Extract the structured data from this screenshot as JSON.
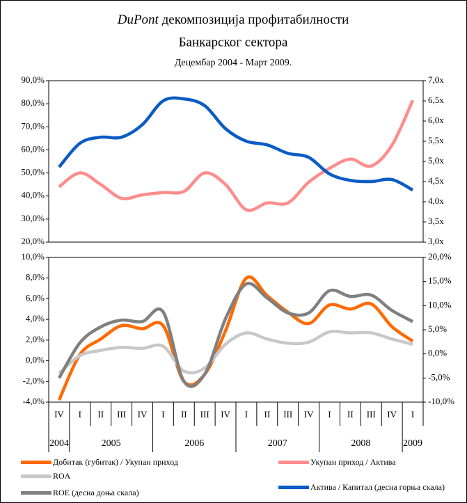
{
  "chart_data": [
    {
      "type": "line",
      "title_lead": "DuPont",
      "title": "декомпозиција профитабилности",
      "title2": "Банкарског сектора",
      "subtitle": "Децембар 2004 - Март 2009.",
      "ylim": [
        20,
        90
      ],
      "yticks": [
        {
          "value": 20,
          "label": "20,0%"
        },
        {
          "value": 30,
          "label": "30,0%"
        },
        {
          "value": 40,
          "label": "40,0%"
        },
        {
          "value": 50,
          "label": "50,0%"
        },
        {
          "value": 60,
          "label": "60,0%"
        },
        {
          "value": 70,
          "label": "70,0%"
        },
        {
          "value": 80,
          "label": "80,0%"
        },
        {
          "value": 90,
          "label": "90,0%"
        }
      ],
      "y2lim": [
        3,
        7
      ],
      "y2ticks": [
        {
          "value": 3,
          "label": "3,0x"
        },
        {
          "value": 3.5,
          "label": "3,5x"
        },
        {
          "value": 4,
          "label": "4,0x"
        },
        {
          "value": 4.5,
          "label": "4,5x"
        },
        {
          "value": 5,
          "label": "5,0x"
        },
        {
          "value": 5.5,
          "label": "5,5x"
        },
        {
          "value": 6,
          "label": "6,0x"
        },
        {
          "value": 6.5,
          "label": "6,5x"
        },
        {
          "value": 7,
          "label": "7,0x"
        }
      ],
      "series": [
        {
          "name": "Укупан приход / Актива",
          "color": "#ff8c8c",
          "values": [
            44,
            50,
            45,
            39,
            40.5,
            41.5,
            42,
            50,
            45,
            34,
            37,
            37,
            46,
            52,
            56,
            53,
            62,
            81.5
          ]
        },
        {
          "name": "Актива / Капитал (десна горња скала)",
          "color": "#0a5cc4",
          "axis": "y2",
          "values": [
            4.86,
            5.45,
            5.6,
            5.6,
            5.91,
            6.5,
            6.55,
            6.38,
            5.81,
            5.5,
            5.41,
            5.2,
            5.1,
            4.69,
            4.53,
            4.5,
            4.55,
            4.29
          ]
        }
      ]
    },
    {
      "type": "line",
      "categories": [
        "IV",
        "I",
        "II",
        "III",
        "IV",
        "I",
        "II",
        "III",
        "IV",
        "I",
        "II",
        "III",
        "IV",
        "I",
        "II",
        "III",
        "IV",
        "I"
      ],
      "years": [
        "2004",
        "2005",
        "2006",
        "2007",
        "2008",
        "2009"
      ],
      "ylim": [
        -4,
        10
      ],
      "yticks": [
        {
          "value": -4,
          "label": "-4,0%"
        },
        {
          "value": -2,
          "label": "-2,0%"
        },
        {
          "value": 0,
          "label": "0,0%"
        },
        {
          "value": 2,
          "label": "2,0%"
        },
        {
          "value": 4,
          "label": "4,0%"
        },
        {
          "value": 6,
          "label": "6,0%"
        },
        {
          "value": 8,
          "label": "8,0%"
        },
        {
          "value": 10,
          "label": "10,0%"
        }
      ],
      "y2lim": [
        -10,
        20
      ],
      "y2ticks": [
        {
          "value": -10,
          "label": "-10,0%"
        },
        {
          "value": -5,
          "label": "-5,0%"
        },
        {
          "value": 0,
          "label": "0,0%"
        },
        {
          "value": 5,
          "label": "5,0%"
        },
        {
          "value": 10,
          "label": "10,0%"
        },
        {
          "value": 15,
          "label": "15,0%"
        },
        {
          "value": 20,
          "label": "20,0%"
        }
      ],
      "series": [
        {
          "name": "Добитак (губитак) / Укупан приход",
          "color": "#ff6a00",
          "values": [
            -3.8,
            0.6,
            2.1,
            3.4,
            3.1,
            3.4,
            -2.0,
            -1.3,
            2.9,
            8.0,
            6.3,
            4.7,
            3.6,
            5.4,
            5.0,
            5.5,
            3.3,
            1.9
          ]
        },
        {
          "name": "ROA",
          "color": "#c8c8c8",
          "values": [
            -1.2,
            0.5,
            1.0,
            1.3,
            1.2,
            1.4,
            -1.0,
            -0.7,
            1.6,
            2.7,
            2.1,
            1.7,
            1.8,
            2.8,
            2.7,
            2.7,
            2.1,
            1.6
          ]
        },
        {
          "name": "ROE (десна доња скала)",
          "color": "#808080",
          "axis": "y2",
          "values": [
            -5.0,
            2.3,
            5.6,
            7.0,
            6.7,
            8.7,
            -5.7,
            -4.2,
            7.3,
            14.5,
            11.6,
            8.5,
            8.5,
            13.1,
            11.9,
            12.2,
            9.0,
            6.7
          ]
        }
      ]
    }
  ]
}
